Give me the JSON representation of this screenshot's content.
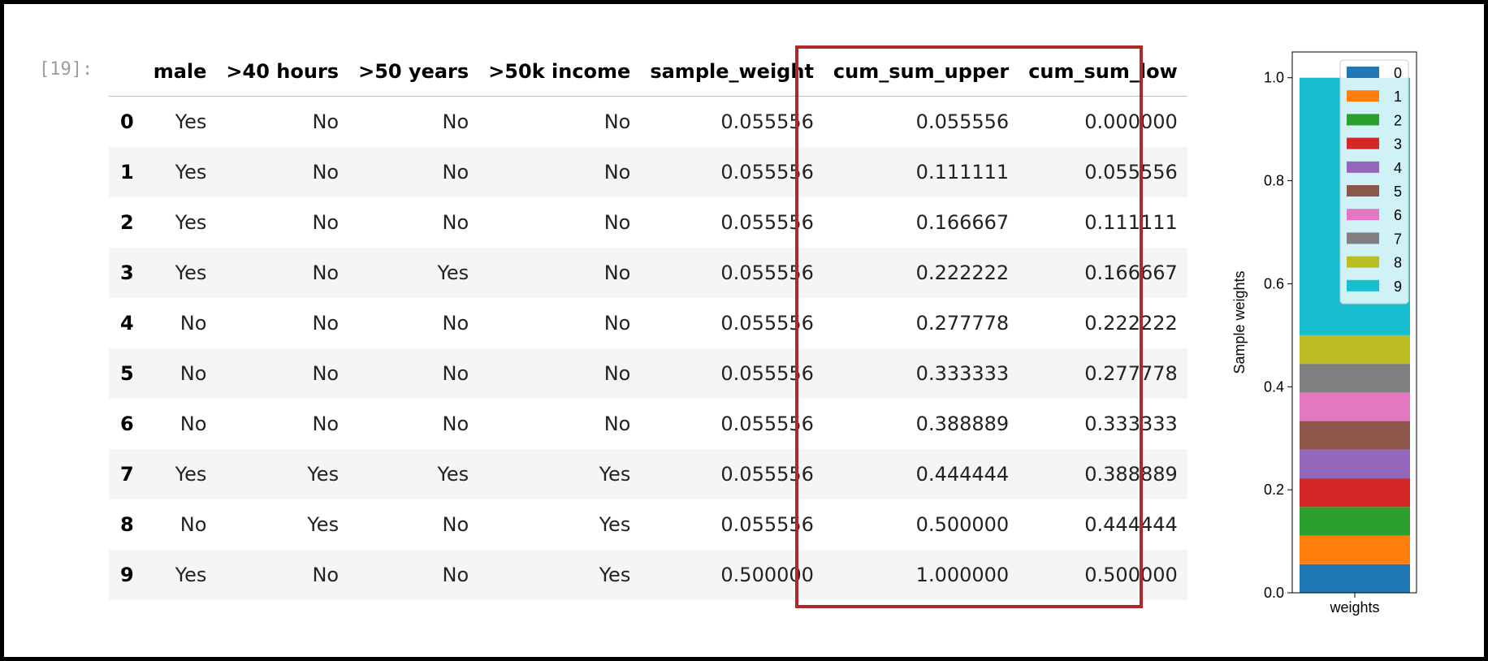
{
  "cell": {
    "prompt": "[19]:"
  },
  "table": {
    "index_header": "",
    "columns": [
      "male",
      ">40 hours",
      ">50 years",
      ">50k income",
      "sample_weight",
      "cum_sum_upper",
      "cum_sum_low"
    ],
    "rows": [
      {
        "index": "0",
        "values": [
          "Yes",
          "No",
          "No",
          "No",
          "0.055556",
          "0.055556",
          "0.000000"
        ]
      },
      {
        "index": "1",
        "values": [
          "Yes",
          "No",
          "No",
          "No",
          "0.055556",
          "0.111111",
          "0.055556"
        ]
      },
      {
        "index": "2",
        "values": [
          "Yes",
          "No",
          "No",
          "No",
          "0.055556",
          "0.166667",
          "0.111111"
        ]
      },
      {
        "index": "3",
        "values": [
          "Yes",
          "No",
          "Yes",
          "No",
          "0.055556",
          "0.222222",
          "0.166667"
        ]
      },
      {
        "index": "4",
        "values": [
          "No",
          "No",
          "No",
          "No",
          "0.055556",
          "0.277778",
          "0.222222"
        ]
      },
      {
        "index": "5",
        "values": [
          "No",
          "No",
          "No",
          "No",
          "0.055556",
          "0.333333",
          "0.277778"
        ]
      },
      {
        "index": "6",
        "values": [
          "No",
          "No",
          "No",
          "No",
          "0.055556",
          "0.388889",
          "0.333333"
        ]
      },
      {
        "index": "7",
        "values": [
          "Yes",
          "Yes",
          "Yes",
          "Yes",
          "0.055556",
          "0.444444",
          "0.388889"
        ]
      },
      {
        "index": "8",
        "values": [
          "No",
          "Yes",
          "No",
          "Yes",
          "0.055556",
          "0.500000",
          "0.444444"
        ]
      },
      {
        "index": "9",
        "values": [
          "Yes",
          "No",
          "No",
          "Yes",
          "0.500000",
          "1.000000",
          "0.500000"
        ]
      }
    ],
    "highlight_color": "#b0282c"
  },
  "chart_data": {
    "type": "bar",
    "stacked": true,
    "categories": [
      "weights"
    ],
    "ylabel": "Sample weights",
    "xlabel": "",
    "ylim": [
      0,
      1.05
    ],
    "yticks": [
      "0.0",
      "0.2",
      "0.4",
      "0.6",
      "0.8",
      "1.0"
    ],
    "legend_position": "top-right",
    "series": [
      {
        "name": "0",
        "values": [
          0.055556
        ],
        "color": "#1f77b4"
      },
      {
        "name": "1",
        "values": [
          0.055556
        ],
        "color": "#ff7f0e"
      },
      {
        "name": "2",
        "values": [
          0.055556
        ],
        "color": "#2ca02c"
      },
      {
        "name": "3",
        "values": [
          0.055556
        ],
        "color": "#d62728"
      },
      {
        "name": "4",
        "values": [
          0.055556
        ],
        "color": "#9467bd"
      },
      {
        "name": "5",
        "values": [
          0.055556
        ],
        "color": "#8c564b"
      },
      {
        "name": "6",
        "values": [
          0.055556
        ],
        "color": "#e377c2"
      },
      {
        "name": "7",
        "values": [
          0.055556
        ],
        "color": "#7f7f7f"
      },
      {
        "name": "8",
        "values": [
          0.055556
        ],
        "color": "#bcbd22"
      },
      {
        "name": "9",
        "values": [
          0.5
        ],
        "color": "#17becf"
      }
    ]
  }
}
